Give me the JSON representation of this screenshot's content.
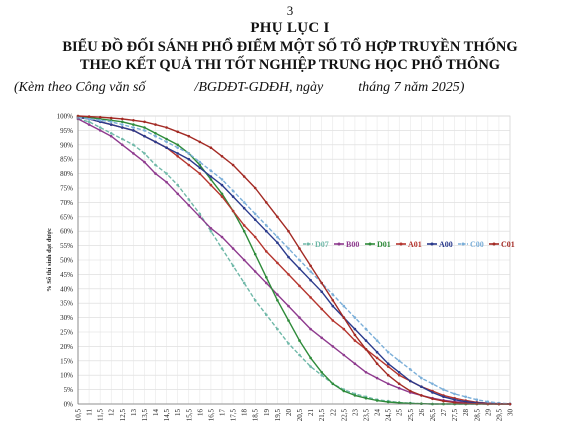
{
  "document": {
    "page_number": "3",
    "appendix_title": "PHỤ LỤC I",
    "heading_line1": "BIỂU ĐỒ ĐỐI SÁNH PHỔ ĐIỂM MỘT SỐ TỔ HỢP TRUYỀN THỐNG",
    "heading_line2": "THEO KẾT QUẢ THI TỐT NGHIỆP TRUNG HỌC PHỔ THÔNG",
    "reference_line": "(Kèm theo Công văn số              /BGDĐT-GDĐH, ngày          tháng 7 năm 2025)"
  },
  "chart_data": {
    "type": "line",
    "title": "",
    "xlabel": "",
    "ylabel": "% Số thí sinh đạt được",
    "x": [
      10.5,
      11,
      11.5,
      12,
      12.5,
      13,
      13.5,
      14,
      14.5,
      15,
      15.5,
      16,
      16.5,
      17,
      17.5,
      18,
      18.5,
      19,
      19.5,
      20,
      20.5,
      21,
      21.5,
      22,
      22.5,
      23,
      23.5,
      24,
      24.5,
      25,
      25.5,
      26,
      26.5,
      27,
      27.5,
      28,
      28.5,
      29,
      29.5,
      30
    ],
    "x_tick_labels": [
      "10,5",
      "11",
      "11,5",
      "12",
      "12,5",
      "13",
      "13,5",
      "14",
      "14,5",
      "15",
      "15,5",
      "16",
      "16,5",
      "17",
      "17,5",
      "18",
      "18,5",
      "19",
      "19,5",
      "20",
      "20,5",
      "21",
      "21,5",
      "22",
      "22,5",
      "23",
      "23,5",
      "24",
      "24,5",
      "25",
      "25,5",
      "26",
      "26,5",
      "27",
      "27,5",
      "28",
      "28,5",
      "29",
      "29,5",
      "30"
    ],
    "y_tick_labels": [
      "0%",
      "5%",
      "10%",
      "15%",
      "20%",
      "25%",
      "30%",
      "35%",
      "40%",
      "45%",
      "50%",
      "55%",
      "60%",
      "65%",
      "70%",
      "75%",
      "80%",
      "85%",
      "90%",
      "95%",
      "100%"
    ],
    "ylim": [
      0,
      100
    ],
    "grid": true,
    "legend_position": "center-right",
    "series": [
      {
        "name": "D07",
        "color": "#6fb8a8",
        "dashed": true,
        "values": [
          99,
          98,
          96,
          94,
          92,
          90,
          87,
          83,
          80,
          76,
          71,
          66,
          60,
          54,
          48,
          42,
          36,
          31,
          26,
          21,
          17,
          13,
          10,
          7,
          5,
          3.5,
          2.5,
          1.5,
          1,
          0.5,
          0.3,
          0.1,
          0,
          0,
          0,
          0,
          0,
          0,
          0,
          0
        ]
      },
      {
        "name": "B00",
        "color": "#8e3a8e",
        "values": [
          99,
          97,
          95,
          93,
          90,
          87,
          84,
          80,
          77,
          73,
          69,
          65,
          61,
          58,
          54,
          50,
          46,
          42,
          38,
          34,
          30,
          26,
          23,
          20,
          17,
          14,
          11,
          9,
          7,
          5.5,
          4,
          3,
          2,
          1.3,
          0.8,
          0.5,
          0.3,
          0.1,
          0,
          0
        ]
      },
      {
        "name": "D01",
        "color": "#2e8b3a",
        "values": [
          100,
          99.5,
          99,
          98.5,
          98,
          97,
          96,
          94,
          92,
          90,
          87,
          83,
          78,
          73,
          67,
          60,
          52,
          44,
          36,
          29,
          22,
          16,
          11,
          7,
          4.5,
          3,
          2,
          1.2,
          0.7,
          0.4,
          0.2,
          0.1,
          0,
          0,
          0,
          0,
          0,
          0,
          0,
          0
        ]
      },
      {
        "name": "A01",
        "color": "#b5352e",
        "values": [
          99.5,
          99,
          98,
          97,
          96,
          95,
          93,
          91,
          89,
          86,
          83,
          80,
          76,
          72,
          67,
          62,
          58,
          53,
          49,
          45,
          41,
          37,
          33,
          29,
          26,
          22,
          19,
          16,
          13,
          10,
          8,
          6,
          4.5,
          3,
          2,
          1.2,
          0.6,
          0.3,
          0.1,
          0
        ]
      },
      {
        "name": "A00",
        "color": "#2a3a8c",
        "values": [
          99.5,
          99,
          98,
          97,
          96,
          95,
          93,
          91,
          89,
          87,
          85,
          82,
          79,
          76,
          72,
          68,
          64,
          60,
          56,
          51,
          47,
          43,
          39,
          34,
          30,
          26,
          22,
          18,
          14,
          11,
          8,
          6,
          4,
          2.5,
          1.5,
          0.8,
          0.4,
          0.2,
          0.1,
          0
        ]
      },
      {
        "name": "C00",
        "color": "#7aaed8",
        "dashed": true,
        "values": [
          99.5,
          99,
          98.5,
          98,
          97,
          96,
          95,
          93,
          91,
          89,
          87,
          84,
          81,
          78,
          74,
          70,
          66,
          62,
          58,
          54,
          50,
          46,
          42,
          38,
          34,
          30,
          26,
          22,
          18,
          15,
          12,
          9,
          7,
          5,
          3.5,
          2.5,
          1.5,
          0.8,
          0.3,
          0.1
        ]
      },
      {
        "name": "C01",
        "color": "#a32a24",
        "values": [
          100,
          99.8,
          99.6,
          99.3,
          99,
          98.5,
          98,
          97,
          96,
          94.5,
          93,
          91,
          89,
          86,
          83,
          79,
          75,
          70,
          65,
          60,
          54,
          48,
          42,
          36,
          30,
          24,
          19,
          14,
          10,
          7,
          4.5,
          3,
          1.8,
          1,
          0.5,
          0.2,
          0.1,
          0,
          0,
          0
        ]
      }
    ]
  }
}
